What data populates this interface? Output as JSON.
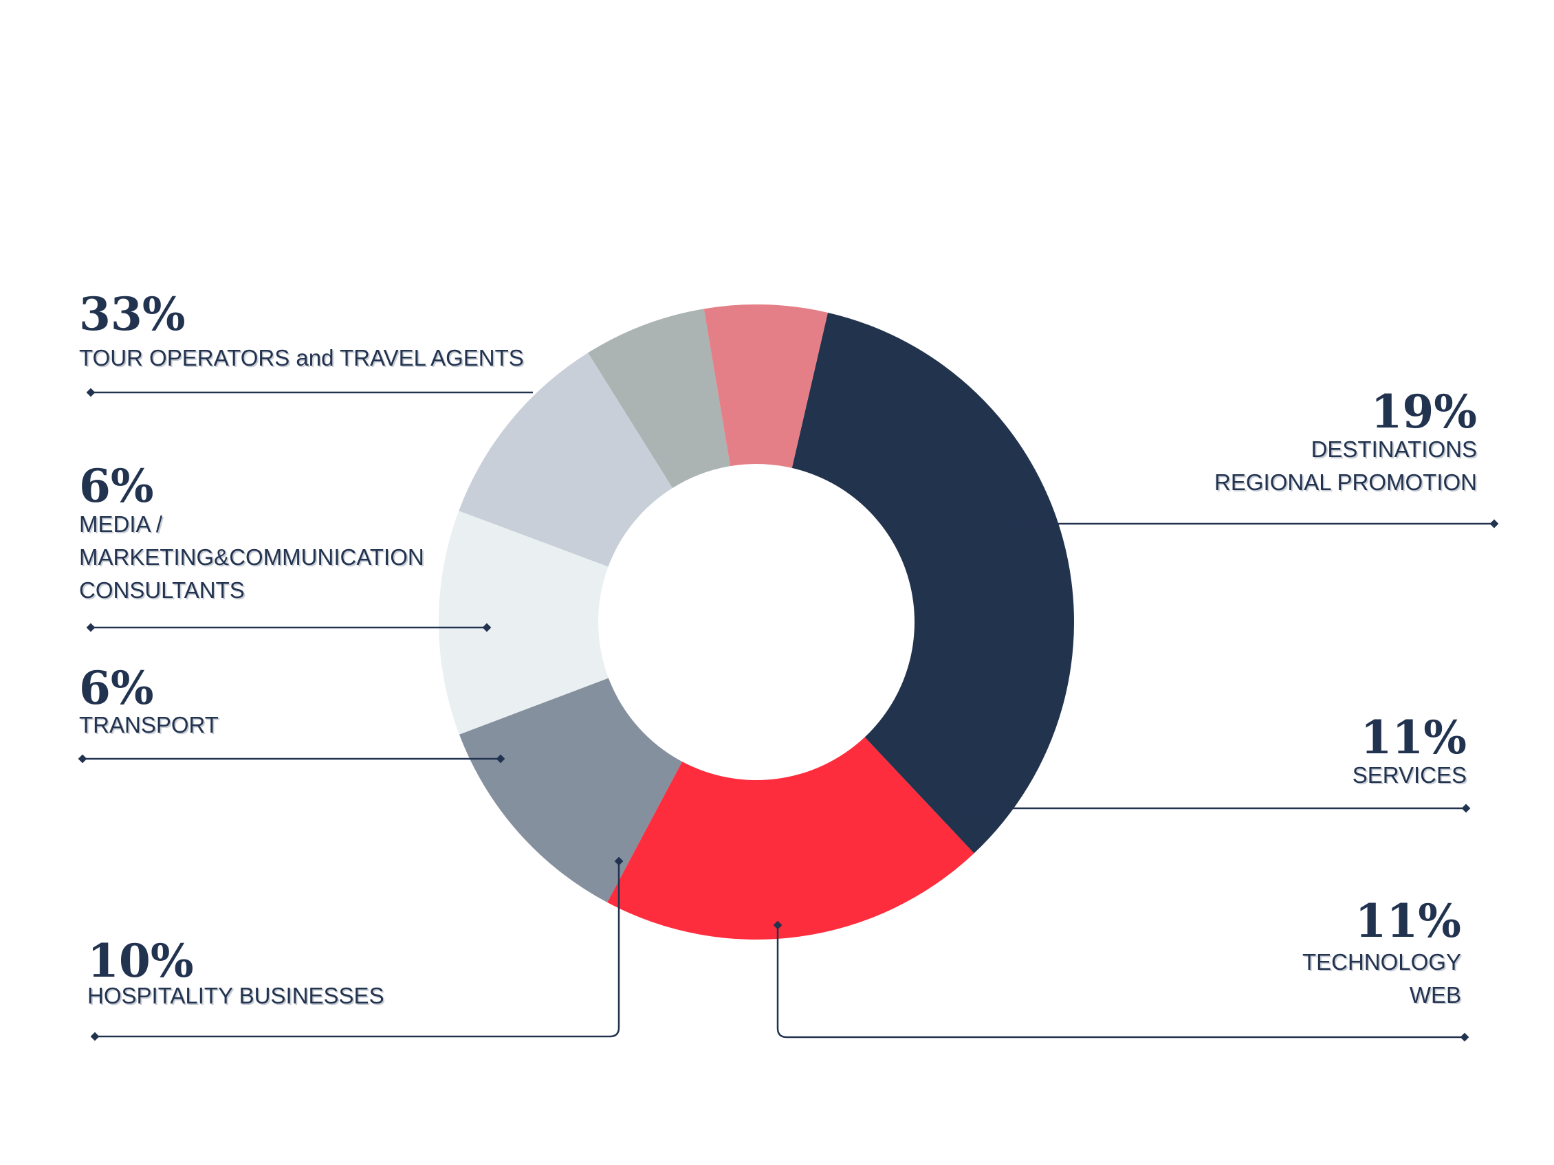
{
  "chart_data": {
    "type": "pie",
    "style": "donut",
    "slices": [
      {
        "value": 33,
        "percent_label": "33%",
        "label_lines": [
          "TOUR OPERATORS and TRAVEL AGENTS"
        ],
        "color": "#22334d"
      },
      {
        "value": 19,
        "percent_label": "19%",
        "label_lines": [
          "DESTINATIONS",
          "REGIONAL PROMOTION"
        ],
        "color": "#fe2d3d"
      },
      {
        "value": 11,
        "percent_label": "11%",
        "label_lines": [
          "SERVICES"
        ],
        "color": "#85909f"
      },
      {
        "value": 11,
        "percent_label": "11%",
        "label_lines": [
          "TECHNOLOGY",
          "WEB"
        ],
        "color": "#eaeff2"
      },
      {
        "value": 10,
        "percent_label": "10%",
        "label_lines": [
          "HOSPITALITY BUSINESSES"
        ],
        "color": "#c8cfd8"
      },
      {
        "value": 6,
        "percent_label": "6%",
        "label_lines": [
          "TRANSPORT"
        ],
        "color": "#abb3b3"
      },
      {
        "value": 6,
        "percent_label": "6%",
        "label_lines": [
          "MEDIA /",
          "MARKETING&COMMUNICATION",
          "CONSULTANTS"
        ],
        "color": "#e57f87"
      }
    ],
    "start_angle_deg": -77,
    "direction": "clockwise",
    "legend_placement": "callouts",
    "line_color": "#223350"
  }
}
